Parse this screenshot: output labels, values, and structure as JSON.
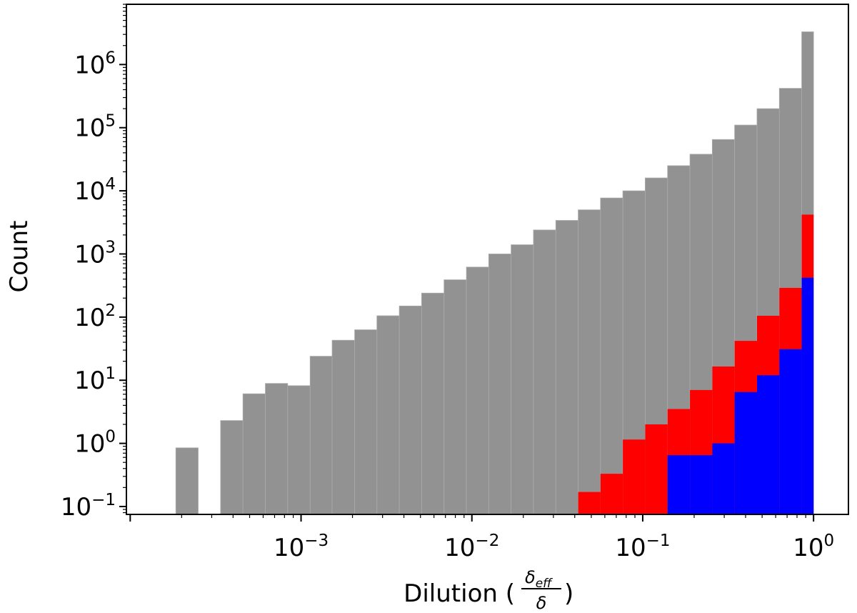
{
  "chart_data": {
    "type": "bar",
    "xlabel_text": "Dilution (",
    "xlabel_frac_num_base": "δ",
    "xlabel_frac_num_sub": "eff",
    "xlabel_frac_den": "δ",
    "xlabel_close": ")",
    "ylabel": "Count",
    "x_scale": "log",
    "y_scale": "log",
    "xlim": [
      9.5e-05,
      1.6
    ],
    "ylim": [
      0.075,
      9000000
    ],
    "grid": false,
    "x_ticks": [
      {
        "value": 0.001,
        "base": "10",
        "exp": "−3"
      },
      {
        "value": 0.01,
        "base": "10",
        "exp": "−2"
      },
      {
        "value": 0.1,
        "base": "10",
        "exp": "−1"
      },
      {
        "value": 1,
        "base": "10",
        "exp": "0"
      }
    ],
    "y_ticks": [
      {
        "value": 0.1,
        "base": "10",
        "exp": "−1"
      },
      {
        "value": 1,
        "base": "10",
        "exp": "0"
      },
      {
        "value": 10,
        "base": "10",
        "exp": "1"
      },
      {
        "value": 100,
        "base": "10",
        "exp": "2"
      },
      {
        "value": 1000,
        "base": "10",
        "exp": "3"
      },
      {
        "value": 10000,
        "base": "10",
        "exp": "4"
      },
      {
        "value": 100000,
        "base": "10",
        "exp": "5"
      },
      {
        "value": 1000000,
        "base": "10",
        "exp": "6"
      }
    ],
    "bin_edges": [
      0.000185,
      0.00025,
      0.000338,
      0.000457,
      0.000618,
      0.000835,
      0.00113,
      0.00152,
      0.00206,
      0.00278,
      0.00376,
      0.00508,
      0.00687,
      0.00929,
      0.01255,
      0.01696,
      0.02293,
      0.031,
      0.0419,
      0.0566,
      0.0765,
      0.1034,
      0.1398,
      0.189,
      0.2554,
      0.3452,
      0.4666,
      0.6307,
      0.8525,
      1.0
    ],
    "series": [
      {
        "color": "#929292",
        "values": [
          0.85,
          0,
          2.3,
          6.1,
          8.9,
          8.2,
          24,
          43,
          63,
          105,
          150,
          240,
          390,
          620,
          1000,
          1400,
          2400,
          3400,
          5000,
          7700,
          10000,
          16000,
          25000,
          38000,
          65000,
          110000,
          200000,
          420000,
          3300000
        ]
      },
      {
        "color": "#ff0000",
        "values": [
          0,
          0,
          0,
          0,
          0,
          0,
          0,
          0,
          0,
          0,
          0,
          0,
          0,
          0,
          0,
          0,
          0,
          0,
          0.17,
          0.33,
          1.15,
          2.0,
          3.5,
          7.0,
          16.5,
          42,
          105,
          290,
          4200
        ]
      },
      {
        "color": "#0000ff",
        "values": [
          0,
          0,
          0,
          0,
          0,
          0,
          0,
          0,
          0,
          0,
          0,
          0,
          0,
          0,
          0,
          0,
          0,
          0,
          0,
          0,
          0,
          0,
          0.65,
          0.65,
          1.0,
          6.5,
          12,
          31,
          420
        ]
      }
    ]
  }
}
